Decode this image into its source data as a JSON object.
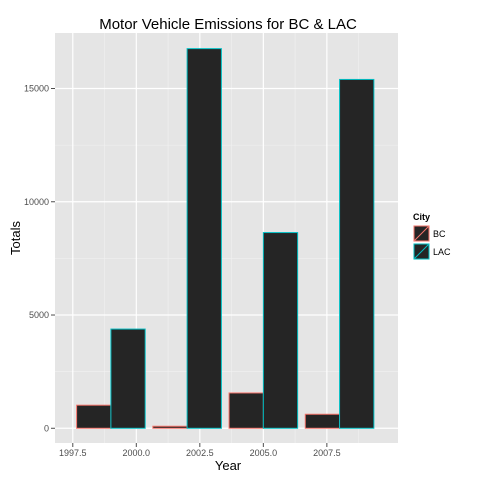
{
  "chart_data": {
    "type": "bar",
    "title": "Motor Vehicle Emissions for BC & LAC",
    "xlabel": "Year",
    "ylabel": "Totals",
    "x_ticks": [
      "1997.5",
      "2000.0",
      "2002.5",
      "2005.0",
      "2007.5"
    ],
    "x_tick_values": [
      1997.5,
      2000.0,
      2002.5,
      2005.0,
      2007.5
    ],
    "y_ticks": [
      "0",
      "5000",
      "10000",
      "15000"
    ],
    "y_tick_values": [
      0,
      5000,
      10000,
      15000
    ],
    "xlim": [
      1996.8,
      2010.3
    ],
    "ylim": [
      -650,
      17450
    ],
    "grid": true,
    "legend": {
      "title": "City",
      "position": "right"
    },
    "bar_fill": "#252525",
    "panel_bg": "#e5e5e5",
    "categories": [
      1999,
      2002,
      2005,
      2008
    ],
    "series": [
      {
        "name": "BC",
        "color": "#f8766d",
        "values": [
          1020,
          90,
          1560,
          620
        ]
      },
      {
        "name": "LAC",
        "color": "#00bfc4",
        "values": [
          4380,
          16760,
          8640,
          15400
        ]
      }
    ]
  }
}
